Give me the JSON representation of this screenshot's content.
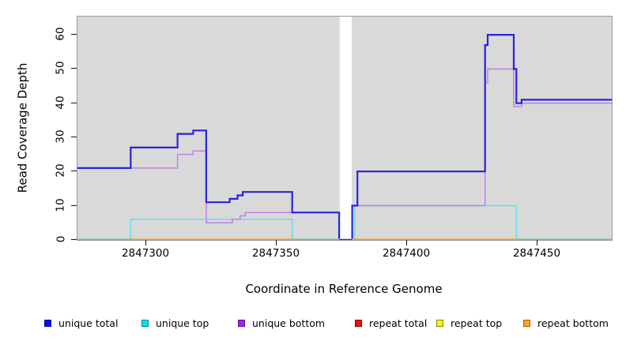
{
  "chart_data": {
    "type": "line",
    "step": true,
    "title": "",
    "xlabel": "Coordinate in Reference Genome",
    "ylabel": "Read Coverage Depth",
    "xlim": [
      2847273.6,
      2847478.6
    ],
    "ylim": [
      0,
      65.3
    ],
    "x_ticks": [
      2847300,
      2847350,
      2847400,
      2847450
    ],
    "y_ticks": [
      0,
      10,
      20,
      30,
      40,
      50,
      60
    ],
    "grid": false,
    "plot_background": "#D9D9D9",
    "gap_region": {
      "x_start": 2847374.2,
      "x_end": 2847378.8,
      "color": "#ffffff",
      "note": "white no-data band"
    },
    "series": [
      {
        "name": "unique total",
        "color": "#2823DC",
        "line_width": 2.2,
        "points": [
          [
            2847273.6,
            21
          ],
          [
            2847294,
            27
          ],
          [
            2847312,
            31
          ],
          [
            2847318,
            32
          ],
          [
            2847323,
            11
          ],
          [
            2847332,
            12
          ],
          [
            2847335,
            13
          ],
          [
            2847337,
            14
          ],
          [
            2847356,
            8
          ],
          [
            2847374,
            0
          ],
          [
            2847379,
            10
          ],
          [
            2847381,
            20
          ],
          [
            2847430,
            57
          ],
          [
            2847431,
            60
          ],
          [
            2847441,
            50
          ],
          [
            2847442,
            40
          ],
          [
            2847444,
            41
          ],
          [
            2847478.6,
            41
          ]
        ]
      },
      {
        "name": "unique top",
        "color": "#67DEE6",
        "line_width": 1.5,
        "points": [
          [
            2847273.6,
            0
          ],
          [
            2847294,
            6
          ],
          [
            2847356,
            0
          ],
          [
            2847380,
            10
          ],
          [
            2847442,
            0
          ],
          [
            2847478.6,
            0
          ]
        ]
      },
      {
        "name": "unique bottom",
        "color": "#C27FE9",
        "line_width": 1.5,
        "points": [
          [
            2847273.6,
            21
          ],
          [
            2847312,
            25
          ],
          [
            2847318,
            26
          ],
          [
            2847323,
            5
          ],
          [
            2847333,
            6
          ],
          [
            2847336,
            7
          ],
          [
            2847338,
            8
          ],
          [
            2847374,
            0
          ],
          [
            2847379,
            10
          ],
          [
            2847430,
            46
          ],
          [
            2847431,
            50
          ],
          [
            2847441,
            39
          ],
          [
            2847444,
            40
          ],
          [
            2847478.6,
            40
          ]
        ]
      },
      {
        "name": "repeat total",
        "color": "#EC1111",
        "line_width": 1.5,
        "points": [
          [
            2847273.6,
            0
          ],
          [
            2847478.6,
            0
          ]
        ]
      },
      {
        "name": "repeat top",
        "color": "#F8F811",
        "line_width": 1.5,
        "points": [
          [
            2847273.6,
            0
          ],
          [
            2847478.6,
            0
          ]
        ]
      },
      {
        "name": "repeat bottom",
        "color": "#FF9D1E",
        "line_width": 1.5,
        "points": [
          [
            2847273.6,
            0
          ],
          [
            2847478.6,
            0
          ]
        ]
      }
    ],
    "zero_line_segments": [
      {
        "color": "#72C795",
        "x": [
          2847273.6,
          2847294
        ]
      },
      {
        "color": "#FF9D1E",
        "x": [
          2847294,
          2847356
        ]
      },
      {
        "color": "#72C795",
        "x": [
          2847356,
          2847374.2
        ]
      },
      {
        "color": "#FF9D1E",
        "x": [
          2847378.8,
          2847442
        ]
      },
      {
        "color": "#72C795",
        "x": [
          2847442,
          2847478.6
        ]
      }
    ],
    "legend_position": "bottom"
  },
  "legend": {
    "items": [
      {
        "label": "unique total",
        "fill": "#0D0DE8",
        "border": "#000090"
      },
      {
        "label": "unique top",
        "fill": "#00E3EE",
        "border": "#00848E"
      },
      {
        "label": "unique bottom",
        "fill": "#A122EC",
        "border": "#5C1090"
      },
      {
        "label": "repeat total",
        "fill": "#EC1111",
        "border": "#8E0000"
      },
      {
        "label": "repeat top",
        "fill": "#F8F811",
        "border": "#86860A"
      },
      {
        "label": "repeat bottom",
        "fill": "#FFA41C",
        "border": "#9E6200"
      }
    ]
  }
}
